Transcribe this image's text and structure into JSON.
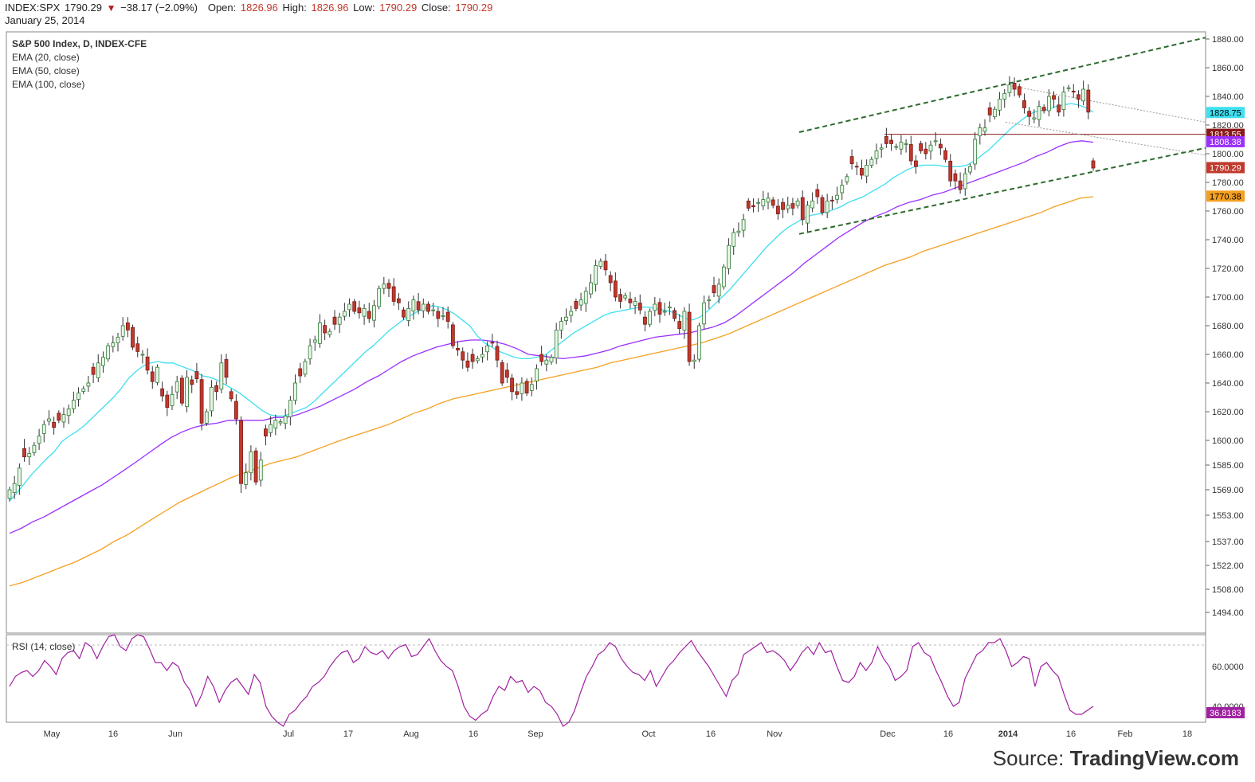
{
  "header": {
    "symbol": "INDEX:SPX",
    "last": "1790.29",
    "change": "−38.17 (−2.09%)",
    "open_label": "Open:",
    "open": "1826.96",
    "high_label": "High:",
    "high": "1826.96",
    "low_label": "Low:",
    "low": "1790.29",
    "close_label": "Close:",
    "close": "1790.29",
    "date": "January 25, 2014"
  },
  "legend": {
    "title": "S&P 500 Index, D, INDEX-CFE",
    "ema20": "EMA (20, close)",
    "ema50": "EMA (50, close)",
    "ema100": "EMA (100, close)",
    "rsi": "RSI (14, close)"
  },
  "source": {
    "prefix": "Source: ",
    "brand": "TradingView.com"
  },
  "colors": {
    "up": "#2e7d32",
    "down": "#c0392b",
    "ema20": "#3ee0f0",
    "ema50": "#9b30ff",
    "ema100": "#f4a020",
    "rsi": "#a020a0",
    "trend": "#2d6a2d"
  },
  "chart_data": {
    "type": "candlestick",
    "price_axis_ticks": [
      1880,
      1860,
      1840,
      1820,
      1800,
      1780,
      1760,
      1740,
      1720,
      1700,
      1680,
      1660,
      1640,
      1620,
      1600,
      1585,
      1569,
      1553,
      1537,
      1522,
      1508,
      1494
    ],
    "price_axis_labels": [
      "1880.00",
      "1860.00",
      "1840.00",
      "1820.00",
      "1800.00",
      "1780.00",
      "1760.00",
      "1740.00",
      "1720.00",
      "1700.00",
      "1680.00",
      "1660.00",
      "1640.00",
      "1620.00",
      "1600.00",
      "1585.00",
      "1569.00",
      "1553.00",
      "1537.00",
      "1522.00",
      "1508.00",
      "1494.00"
    ],
    "x_axis_labels": [
      "May",
      "16",
      "Jun",
      "Jul",
      "17",
      "Aug",
      "16",
      "Sep",
      "Oct",
      "16",
      "Nov",
      "Dec",
      "16",
      "2014",
      "16",
      "Feb",
      "18"
    ],
    "rsi_axis_labels": [
      "60.0000",
      "40.0000"
    ],
    "price_tags": [
      {
        "label": "1828.75",
        "value": 1828.75,
        "color": "#3ee0f0",
        "text_color": "#000"
      },
      {
        "label": "1813.55",
        "value": 1813.55,
        "color": "#8b1a1a",
        "text_color": "#fff"
      },
      {
        "label": "1808.38",
        "value": 1808.38,
        "color": "#9b30ff",
        "text_color": "#fff"
      },
      {
        "label": "1790.29",
        "value": 1790.29,
        "color": "#c0392b",
        "text_color": "#fff"
      },
      {
        "label": "1770.38",
        "value": 1770.38,
        "color": "#f4a020",
        "text_color": "#000"
      }
    ],
    "rsi_tag": {
      "label": "36.8183",
      "value": 36.8183
    },
    "horizontal_line": 1813.55,
    "closes": [
      1569,
      1573,
      1583,
      1590,
      1592,
      1597,
      1603,
      1611,
      1615,
      1609,
      1614,
      1618,
      1622,
      1628,
      1633,
      1636,
      1640,
      1646,
      1654,
      1658,
      1666,
      1668,
      1672,
      1680,
      1677,
      1665,
      1662,
      1660,
      1649,
      1641,
      1651,
      1631,
      1623,
      1632,
      1641,
      1626,
      1644,
      1639,
      1643,
      1612,
      1620,
      1637,
      1634,
      1654,
      1644,
      1629,
      1615,
      1573,
      1580,
      1593,
      1574,
      1588,
      1603,
      1611,
      1614,
      1613,
      1617,
      1628,
      1640,
      1645,
      1655,
      1666,
      1670,
      1682,
      1675,
      1676,
      1681,
      1686,
      1690,
      1695,
      1690,
      1689,
      1692,
      1685,
      1694,
      1706,
      1709,
      1706,
      1697,
      1696,
      1686,
      1692,
      1698,
      1691,
      1695,
      1690,
      1691,
      1685,
      1687,
      1683,
      1666,
      1663,
      1656,
      1651,
      1655,
      1657,
      1660,
      1666,
      1668,
      1656,
      1640,
      1644,
      1634,
      1632,
      1640,
      1633,
      1639,
      1650,
      1655,
      1656,
      1658,
      1677,
      1683,
      1686,
      1690,
      1692,
      1698,
      1704,
      1710,
      1722,
      1725,
      1719,
      1710,
      1700,
      1697,
      1701,
      1696,
      1697,
      1691,
      1681,
      1690,
      1695,
      1688,
      1690,
      1693,
      1685,
      1678,
      1690,
      1655,
      1656,
      1680,
      1696,
      1698,
      1703,
      1709,
      1721,
      1736,
      1745,
      1746,
      1754,
      1762,
      1763,
      1766,
      1768,
      1769,
      1764,
      1758,
      1761,
      1764,
      1762,
      1767,
      1754,
      1764,
      1767,
      1770,
      1759,
      1767,
      1767,
      1771,
      1778,
      1784,
      1793,
      1791,
      1785,
      1792,
      1796,
      1802,
      1804,
      1807,
      1807,
      1805,
      1808,
      1807,
      1795,
      1791,
      1802,
      1800,
      1806,
      1809,
      1804,
      1796,
      1781,
      1781,
      1775,
      1786,
      1791,
      1810,
      1818,
      1818,
      1827,
      1831,
      1838,
      1842,
      1848,
      1845,
      1841,
      1832,
      1826,
      1825,
      1833,
      1830,
      1840,
      1838,
      1829,
      1843,
      1846,
      1843,
      1838,
      1845,
      1829,
      1790
    ],
    "ema20": [
      1562,
      1567,
      1573,
      1579,
      1584,
      1589,
      1593,
      1599,
      1603,
      1606,
      1610,
      1615,
      1620,
      1625,
      1630,
      1636,
      1643,
      1648,
      1652,
      1654,
      1655,
      1654,
      1654,
      1652,
      1650,
      1648,
      1645,
      1644,
      1642,
      1639,
      1636,
      1633,
      1629,
      1625,
      1621,
      1618,
      1617,
      1617,
      1619,
      1621,
      1623,
      1627,
      1632,
      1637,
      1642,
      1647,
      1652,
      1657,
      1662,
      1666,
      1671,
      1676,
      1680,
      1684,
      1687,
      1690,
      1692,
      1694,
      1693,
      1691,
      1688,
      1684,
      1680,
      1673,
      1668,
      1665,
      1662,
      1660,
      1658,
      1657,
      1657,
      1658,
      1659,
      1663,
      1667,
      1671,
      1675,
      1678,
      1681,
      1684,
      1687,
      1689,
      1690,
      1691,
      1692,
      1693,
      1693,
      1692,
      1691,
      1690,
      1688,
      1685,
      1684,
      1686,
      1690,
      1695,
      1700,
      1705,
      1711,
      1717,
      1723,
      1729,
      1735,
      1740,
      1745,
      1749,
      1752,
      1755,
      1757,
      1758,
      1759,
      1761,
      1763,
      1766,
      1768,
      1770,
      1773,
      1776,
      1779,
      1783,
      1786,
      1789,
      1791,
      1792,
      1792,
      1792,
      1791,
      1791,
      1791,
      1792,
      1795,
      1799,
      1803,
      1808,
      1813,
      1818,
      1822,
      1826,
      1829,
      1830,
      1831,
      1833,
      1834,
      1835,
      1834,
      1832,
      1829
    ],
    "ema50": [
      1542,
      1545,
      1549,
      1552,
      1556,
      1560,
      1564,
      1568,
      1572,
      1577,
      1582,
      1587,
      1592,
      1597,
      1602,
      1606,
      1609,
      1611,
      1612,
      1614,
      1614,
      1614,
      1614,
      1616,
      1616,
      1618,
      1621,
      1624,
      1628,
      1632,
      1636,
      1641,
      1645,
      1650,
      1655,
      1659,
      1662,
      1665,
      1667,
      1669,
      1670,
      1670,
      1669,
      1667,
      1664,
      1660,
      1659,
      1658,
      1657,
      1658,
      1659,
      1661,
      1663,
      1666,
      1668,
      1670,
      1672,
      1673,
      1674,
      1675,
      1677,
      1679,
      1682,
      1687,
      1693,
      1699,
      1705,
      1711,
      1717,
      1724,
      1730,
      1736,
      1742,
      1747,
      1752,
      1756,
      1759,
      1763,
      1766,
      1768,
      1771,
      1773,
      1776,
      1779,
      1782,
      1785,
      1788,
      1791,
      1794,
      1798,
      1801,
      1805,
      1808,
      1809,
      1808
    ],
    "ema100": [
      1510,
      1512,
      1515,
      1518,
      1521,
      1524,
      1528,
      1532,
      1537,
      1541,
      1546,
      1551,
      1556,
      1561,
      1565,
      1569,
      1573,
      1577,
      1580,
      1583,
      1586,
      1588,
      1590,
      1593,
      1596,
      1599,
      1602,
      1605,
      1608,
      1611,
      1615,
      1619,
      1622,
      1626,
      1629,
      1631,
      1633,
      1635,
      1637,
      1639,
      1641,
      1643,
      1645,
      1647,
      1649,
      1651,
      1654,
      1656,
      1658,
      1660,
      1662,
      1664,
      1666,
      1668,
      1671,
      1674,
      1678,
      1682,
      1686,
      1690,
      1694,
      1698,
      1702,
      1706,
      1710,
      1714,
      1718,
      1722,
      1725,
      1728,
      1732,
      1735,
      1738,
      1741,
      1744,
      1747,
      1750,
      1753,
      1756,
      1759,
      1763,
      1766,
      1769,
      1770
    ],
    "rsi": [
      50,
      55,
      57,
      58,
      55,
      58,
      63,
      60,
      56,
      64,
      67,
      68,
      64,
      72,
      70,
      64,
      70,
      75,
      76,
      70,
      68,
      74,
      76,
      75,
      69,
      62,
      62,
      58,
      62,
      60,
      52,
      48,
      40,
      46,
      55,
      50,
      42,
      48,
      52,
      54,
      50,
      46,
      56,
      52,
      40,
      35,
      32,
      30,
      36,
      38,
      42,
      45,
      50,
      52,
      55,
      60,
      64,
      67,
      68,
      62,
      64,
      70,
      67,
      66,
      68,
      64,
      68,
      70,
      71,
      65,
      66,
      70,
      74,
      68,
      63,
      60,
      58,
      50,
      40,
      35,
      33,
      36,
      38,
      45,
      50,
      48,
      55,
      52,
      53,
      47,
      50,
      48,
      42,
      40,
      36,
      30,
      32,
      38,
      47,
      55,
      60,
      66,
      68,
      72,
      70,
      64,
      60,
      57,
      56,
      53,
      58,
      50,
      55,
      60,
      63,
      67,
      70,
      73,
      68,
      64,
      60,
      55,
      50,
      45,
      53,
      56,
      66,
      68,
      70,
      72,
      67,
      68,
      66,
      63,
      58,
      62,
      67,
      70,
      66,
      72,
      67,
      68,
      60,
      53,
      52,
      55,
      62,
      58,
      62,
      70,
      64,
      60,
      53,
      55,
      58,
      70,
      72,
      67,
      65,
      58,
      52,
      45,
      40,
      42,
      54,
      60,
      66,
      68,
      72,
      72,
      74,
      68,
      60,
      62,
      65,
      64,
      50,
      60,
      62,
      58,
      55,
      46,
      38,
      36,
      36,
      38,
      40
    ]
  }
}
